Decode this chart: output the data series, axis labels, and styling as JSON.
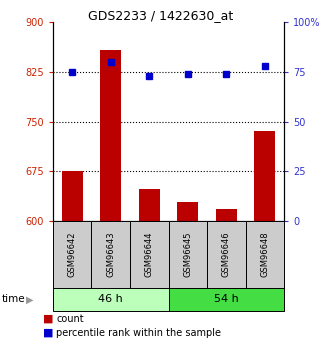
{
  "title": "GDS2233 / 1422630_at",
  "samples": [
    "GSM96642",
    "GSM96643",
    "GSM96644",
    "GSM96645",
    "GSM96646",
    "GSM96648"
  ],
  "count_values": [
    676,
    858,
    648,
    628,
    618,
    736
  ],
  "percentile_values": [
    75,
    80,
    73,
    74,
    74,
    78
  ],
  "groups": [
    {
      "label": "46 h",
      "indices": [
        0,
        1,
        2
      ],
      "color": "#bbffbb"
    },
    {
      "label": "54 h",
      "indices": [
        3,
        4,
        5
      ],
      "color": "#44dd44"
    }
  ],
  "bar_color": "#bb0000",
  "dot_color": "#0000cc",
  "left_ylim": [
    600,
    900
  ],
  "right_ylim": [
    0,
    100
  ],
  "left_yticks": [
    600,
    675,
    750,
    825,
    900
  ],
  "right_yticks": [
    0,
    25,
    50,
    75,
    100
  ],
  "right_yticklabels": [
    "0",
    "25",
    "50",
    "75",
    "100%"
  ],
  "hlines": [
    675,
    750,
    825
  ],
  "legend_bar_label": "count",
  "legend_dot_label": "percentile rank within the sample",
  "label_color_left": "#cc2200",
  "label_color_right": "#3333cc",
  "tick_fontsize": 7,
  "sample_fontsize": 6,
  "group_fontsize": 8,
  "title_fontsize": 9
}
